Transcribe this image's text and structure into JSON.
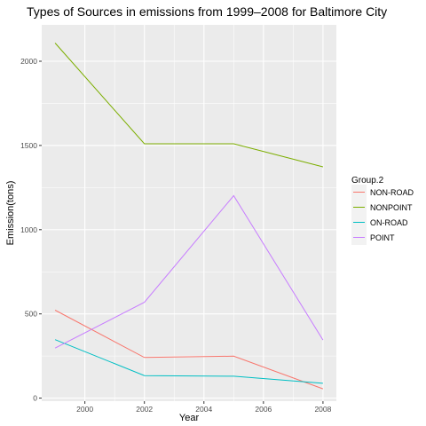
{
  "chart_data": {
    "type": "line",
    "title": "Types of Sources in emissions from 1999–2008 for Baltimore City",
    "xlabel": "Year",
    "ylabel": "Emission(tons)",
    "x": [
      1999,
      2002,
      2005,
      2008
    ],
    "xlim": [
      1998.55,
      2008.45
    ],
    "ylim": [
      -18,
      2216
    ],
    "x_ticks": [
      2000,
      2002,
      2004,
      2006,
      2008
    ],
    "y_ticks": [
      0,
      500,
      1000,
      1500,
      2000
    ],
    "grid": true,
    "legend": {
      "title": "Group.2",
      "placement": "right"
    },
    "series": [
      {
        "name": "NON-ROAD",
        "color": "#F8766D",
        "values": [
          522,
          241,
          249,
          55
        ]
      },
      {
        "name": "NONPOINT",
        "color": "#7CAE00",
        "values": [
          2108,
          1510,
          1510,
          1373
        ]
      },
      {
        "name": "ON-ROAD",
        "color": "#00BFC4",
        "values": [
          347,
          134,
          130,
          88
        ]
      },
      {
        "name": "POINT",
        "color": "#C77CFF",
        "values": [
          297,
          569,
          1202,
          345
        ]
      }
    ]
  }
}
